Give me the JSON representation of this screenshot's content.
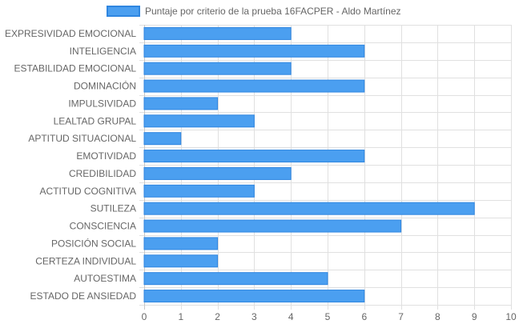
{
  "chart_data": {
    "type": "bar",
    "orientation": "horizontal",
    "categories": [
      "EXPRESIVIDAD EMOCIONAL",
      "INTELIGENCIA",
      "ESTABILIDAD EMOCIONAL",
      "DOMINACIÓN",
      "IMPULSIVIDAD",
      "LEALTAD GRUPAL",
      "APTITUD SITUACIONAL",
      "EMOTIVIDAD",
      "CREDIBILIDAD",
      "ACTITUD COGNITIVA",
      "SUTILEZA",
      "CONSCIENCIA",
      "POSICIÓN SOCIAL",
      "CERTEZA INDIVIDUAL",
      "AUTOESTIMA",
      "ESTADO DE ANSIEDAD"
    ],
    "series": [
      {
        "name": "Puntaje por criterio de la prueba 16FACPER - Aldo Martínez",
        "values": [
          4,
          6,
          4,
          6,
          2,
          3,
          1,
          6,
          4,
          3,
          9,
          7,
          2,
          2,
          5,
          6
        ]
      }
    ],
    "xlim": [
      0,
      10
    ],
    "xticks": [
      "0",
      "1",
      "2",
      "3",
      "4",
      "5",
      "6",
      "7",
      "8",
      "9",
      "10"
    ],
    "grid": true,
    "legend_position": "top",
    "colors": {
      "bar_fill": "#4b9ff0",
      "bar_stroke": "#2f86e0",
      "grid": "#e0e0e0",
      "tick_text": "#666666"
    }
  }
}
